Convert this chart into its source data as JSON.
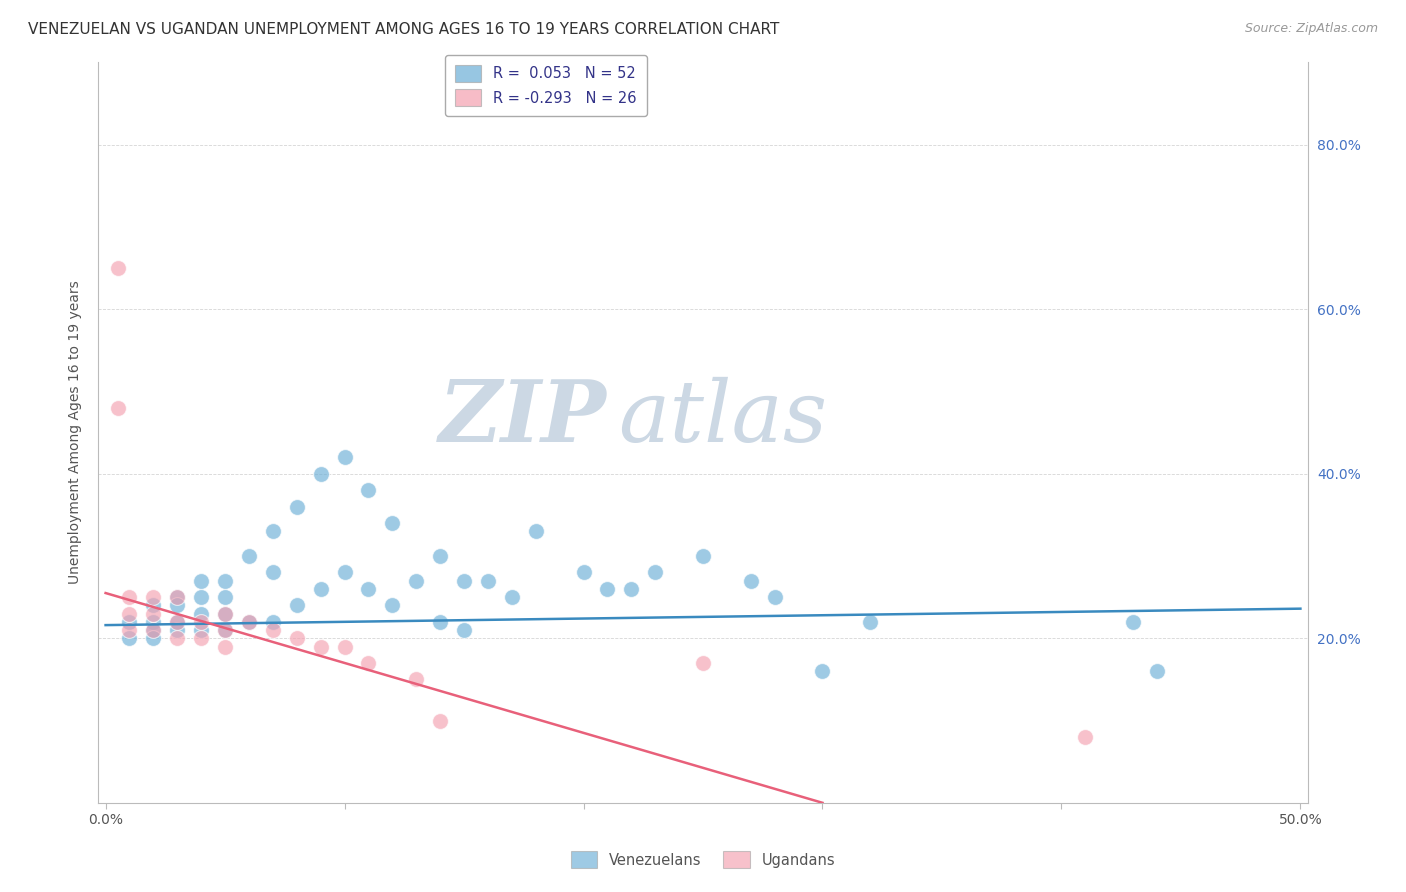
{
  "title": "VENEZUELAN VS UGANDAN UNEMPLOYMENT AMONG AGES 16 TO 19 YEARS CORRELATION CHART",
  "source": "Source: ZipAtlas.com",
  "ylabel": "Unemployment Among Ages 16 to 19 years",
  "ylabel_right_ticks": [
    "80.0%",
    "60.0%",
    "40.0%",
    "20.0%"
  ],
  "ylabel_right_values": [
    0.8,
    0.6,
    0.4,
    0.2
  ],
  "xlim": [
    0.0,
    0.5
  ],
  "ylim": [
    0.0,
    0.9
  ],
  "legend_label_ven": "R =  0.053   N = 52",
  "legend_label_uga": "R = -0.293   N = 26",
  "ven_x": [
    0.01,
    0.01,
    0.02,
    0.02,
    0.02,
    0.02,
    0.03,
    0.03,
    0.03,
    0.03,
    0.04,
    0.04,
    0.04,
    0.04,
    0.05,
    0.05,
    0.05,
    0.05,
    0.06,
    0.06,
    0.07,
    0.07,
    0.07,
    0.08,
    0.08,
    0.09,
    0.09,
    0.1,
    0.1,
    0.11,
    0.11,
    0.12,
    0.12,
    0.13,
    0.14,
    0.14,
    0.15,
    0.15,
    0.16,
    0.17,
    0.18,
    0.2,
    0.21,
    0.22,
    0.23,
    0.25,
    0.27,
    0.28,
    0.3,
    0.32,
    0.43,
    0.44
  ],
  "ven_y": [
    0.22,
    0.2,
    0.24,
    0.22,
    0.21,
    0.2,
    0.25,
    0.24,
    0.22,
    0.21,
    0.27,
    0.25,
    0.23,
    0.21,
    0.27,
    0.25,
    0.23,
    0.21,
    0.3,
    0.22,
    0.33,
    0.28,
    0.22,
    0.36,
    0.24,
    0.4,
    0.26,
    0.42,
    0.28,
    0.38,
    0.26,
    0.34,
    0.24,
    0.27,
    0.3,
    0.22,
    0.27,
    0.21,
    0.27,
    0.25,
    0.33,
    0.28,
    0.26,
    0.26,
    0.28,
    0.3,
    0.27,
    0.25,
    0.16,
    0.22,
    0.22,
    0.16
  ],
  "uga_x": [
    0.005,
    0.005,
    0.01,
    0.01,
    0.01,
    0.02,
    0.02,
    0.02,
    0.03,
    0.03,
    0.03,
    0.04,
    0.04,
    0.05,
    0.05,
    0.05,
    0.06,
    0.07,
    0.08,
    0.09,
    0.1,
    0.11,
    0.13,
    0.14,
    0.25,
    0.41
  ],
  "uga_y": [
    0.65,
    0.48,
    0.25,
    0.23,
    0.21,
    0.25,
    0.23,
    0.21,
    0.25,
    0.22,
    0.2,
    0.22,
    0.2,
    0.23,
    0.21,
    0.19,
    0.22,
    0.21,
    0.2,
    0.19,
    0.19,
    0.17,
    0.15,
    0.1,
    0.17,
    0.08
  ],
  "ven_line_x": [
    0.0,
    0.5
  ],
  "ven_line_y": [
    0.216,
    0.236
  ],
  "uga_line_x": [
    0.0,
    0.3
  ],
  "uga_line_y": [
    0.255,
    0.0
  ],
  "ven_color": "#6baed6",
  "uga_color": "#f4a0b0",
  "ven_line_color": "#3a8abf",
  "uga_line_color": "#e8607a",
  "bg_color": "#ffffff",
  "grid_color": "#cccccc",
  "title_fontsize": 11,
  "tick_fontsize": 10,
  "label_fontsize": 10
}
